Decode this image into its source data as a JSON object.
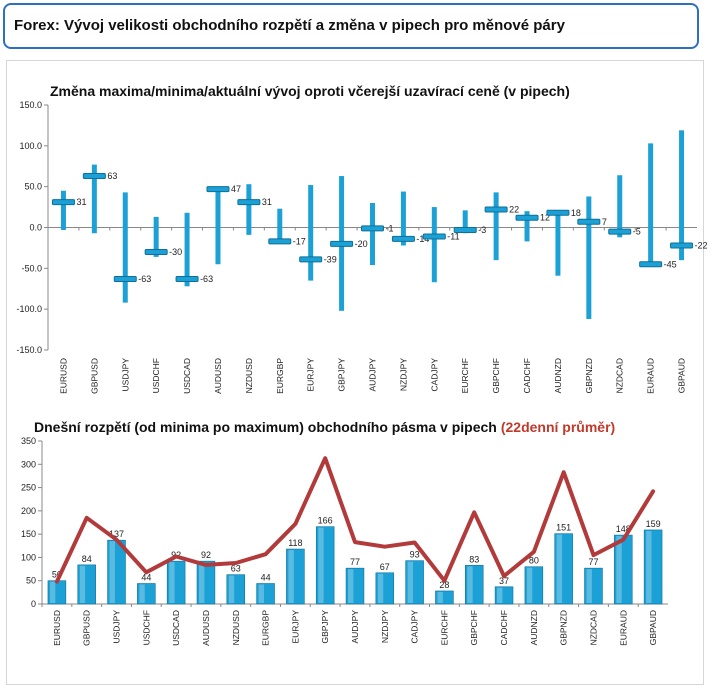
{
  "header": {
    "title": "Forex: Vývoj velikosti obchodního rozpětí a změna v pipech pro měnové páry"
  },
  "colors": {
    "bar": "#1ba1d6",
    "barDark": "#0f6f98",
    "line": "#b23a3a",
    "accentTitle": "#c0392b",
    "header_border": "#2f6fc0"
  },
  "chart_data": [
    {
      "type": "range",
      "title": "Změna maxima/minima/aktuální vývoj oproti včerejší uzavírací ceně (v pipech)",
      "ylim": [
        -150,
        150
      ],
      "yticks": [
        "150.0",
        "100.0",
        "50.0",
        "0.0",
        "-50.0",
        "-100.0",
        "-150.0"
      ],
      "grid": false,
      "categories": [
        "EURUSD",
        "GBPUSD",
        "USDJPY",
        "USDCHF",
        "USDCAD",
        "AUDUSD",
        "NZDUSD",
        "EURGBP",
        "EURJPY",
        "GBPJPY",
        "AUDJPY",
        "NZDJPY",
        "CADJPY",
        "EURCHF",
        "GBPCHF",
        "CADCHF",
        "AUDNZD",
        "GBPNZD",
        "NZDCAD",
        "EURAUD",
        "GBPAUD"
      ],
      "high": [
        45,
        77,
        43,
        13,
        18,
        47,
        53,
        23,
        52,
        63,
        30,
        44,
        25,
        21,
        43,
        20,
        20,
        38,
        64,
        103,
        119
      ],
      "low": [
        -3,
        -7,
        -92,
        -36,
        -72,
        -45,
        -9,
        -17,
        -65,
        -102,
        -46,
        -22,
        -67,
        -7,
        -40,
        -17,
        -59,
        -112,
        -12,
        -46,
        -40
      ],
      "current": [
        31,
        63,
        -63,
        -30,
        -63,
        47,
        31,
        -17,
        -39,
        -20,
        -1,
        -14,
        -11,
        -3,
        22,
        12,
        18,
        7,
        -5,
        -45,
        -22
      ],
      "labels": [
        "31",
        "63",
        "-63",
        "-30",
        "-63",
        "47",
        "31",
        "-17",
        "-39",
        "-20",
        "-1",
        "-14",
        "-11",
        "-3",
        "22",
        "12",
        "18",
        "7",
        "-5",
        "-45",
        "-22"
      ]
    },
    {
      "type": "bar",
      "title_main": "Dnešní rozpětí (od minima po maximum) obchodního pásma v pipech",
      "title_accent": "(22denní průměr)",
      "ylim": [
        0,
        350
      ],
      "yticks": [
        "350",
        "300",
        "250",
        "200",
        "150",
        "100",
        "50",
        "0"
      ],
      "grid": false,
      "categories": [
        "EURUSD",
        "GBPUSD",
        "USDJPY",
        "USDCHF",
        "USDCAD",
        "AUDUSD",
        "NZDUSD",
        "EURGBP",
        "EURJPY",
        "GBPJPY",
        "AUDJPY",
        "NZDJPY",
        "CADJPY",
        "EURCHF",
        "GBPCHF",
        "CADCHF",
        "AUDNZD",
        "GBPNZD",
        "NZDCAD",
        "EURAUD",
        "GBPAUD"
      ],
      "values": [
        50,
        84,
        137,
        44,
        92,
        92,
        63,
        44,
        118,
        166,
        77,
        67,
        93,
        28,
        83,
        37,
        80,
        151,
        77,
        148,
        159
      ],
      "labels": [
        "50",
        "84",
        "137",
        "44",
        "92",
        "92",
        "63",
        "44",
        "118",
        "166",
        "77",
        "67",
        "93",
        "28",
        "83",
        "37",
        "80",
        "151",
        "77",
        "148",
        "159"
      ],
      "average": [
        48,
        185,
        138,
        68,
        102,
        84,
        88,
        107,
        172,
        313,
        133,
        123,
        132,
        50,
        197,
        60,
        112,
        283,
        105,
        138,
        242
      ]
    }
  ]
}
